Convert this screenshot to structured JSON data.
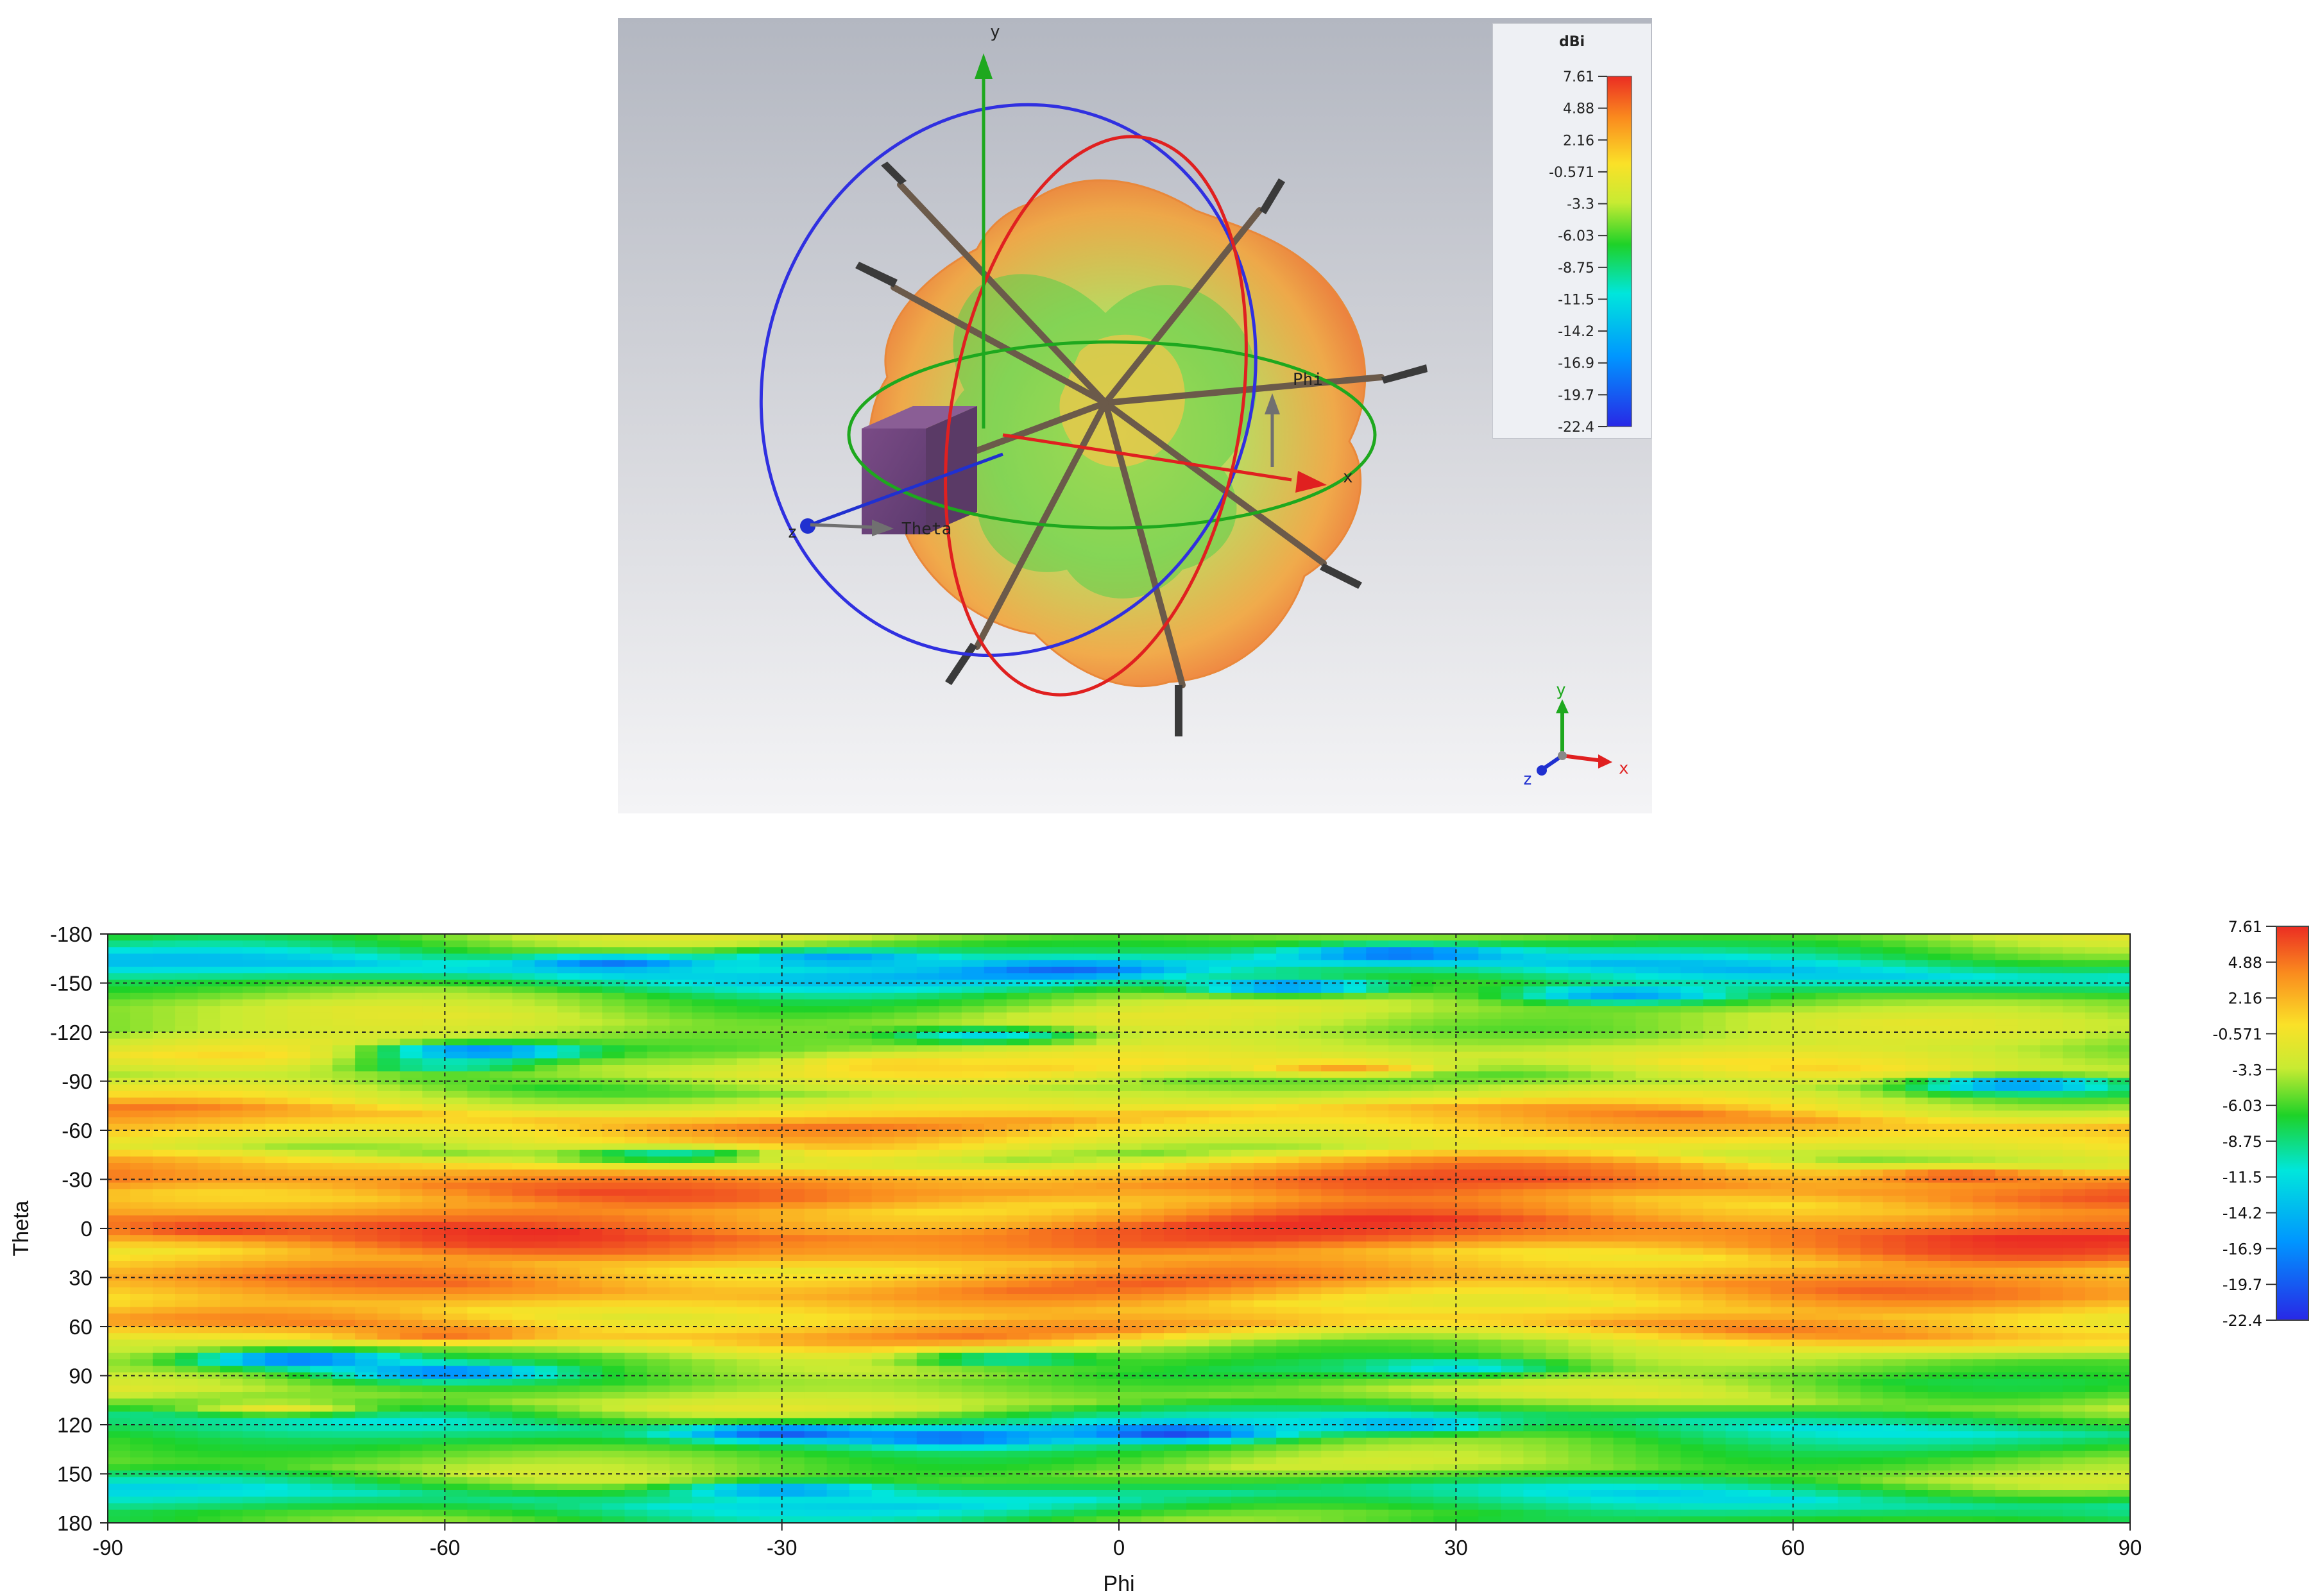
{
  "viewer3d": {
    "legend_unit": "dBi",
    "legend_ticks": [
      "7.61",
      "4.88",
      "2.16",
      "-0.571",
      "-3.3",
      "-6.03",
      "-8.75",
      "-11.5",
      "-14.2",
      "-16.9",
      "-19.7",
      "-22.4"
    ],
    "axis_labels": {
      "x": "x",
      "y": "y",
      "z": "z",
      "phi": "Phi",
      "theta": "Theta"
    },
    "triad_labels": {
      "x": "x",
      "y": "y",
      "z": "z"
    }
  },
  "chart_data": {
    "type": "heatmap",
    "title": "",
    "xlabel": "Phi",
    "ylabel": "Theta",
    "xlim": [
      -90,
      90
    ],
    "ylim": [
      -180,
      180
    ],
    "y_inverted": true,
    "x_ticks": [
      "-90",
      "-60",
      "-30",
      "0",
      "30",
      "60",
      "90"
    ],
    "y_ticks": [
      "-180",
      "-150",
      "-120",
      "-90",
      "-60",
      "-30",
      "0",
      "30",
      "60",
      "90",
      "120",
      "150",
      "180"
    ],
    "grid": true,
    "colorbar": {
      "unit": "dBi",
      "min": -22.4,
      "max": 7.61,
      "ticks": [
        "7.61",
        "4.88",
        "2.16",
        "-0.571",
        "-3.3",
        "-6.03",
        "-8.75",
        "-11.5",
        "-14.2",
        "-16.9",
        "-19.7",
        "-22.4"
      ],
      "position": "right"
    },
    "bands_theta": [
      {
        "theta": -180,
        "value": -4
      },
      {
        "theta": -170,
        "value": -7
      },
      {
        "theta": -158,
        "value": -13
      },
      {
        "theta": -145,
        "value": -6
      },
      {
        "theta": -130,
        "value": -3
      },
      {
        "theta": -115,
        "value": -4
      },
      {
        "theta": -100,
        "value": -1
      },
      {
        "theta": -88,
        "value": -5
      },
      {
        "theta": -75,
        "value": -1
      },
      {
        "theta": -68,
        "value": 3
      },
      {
        "theta": -55,
        "value": 0
      },
      {
        "theta": -45,
        "value": -3
      },
      {
        "theta": -35,
        "value": 3
      },
      {
        "theta": -25,
        "value": 5
      },
      {
        "theta": -15,
        "value": 2
      },
      {
        "theta": -5,
        "value": 4
      },
      {
        "theta": 0,
        "value": 6
      },
      {
        "theta": 10,
        "value": 5
      },
      {
        "theta": 20,
        "value": 1
      },
      {
        "theta": 35,
        "value": 4
      },
      {
        "theta": 50,
        "value": 0
      },
      {
        "theta": 62,
        "value": 3
      },
      {
        "theta": 75,
        "value": -4
      },
      {
        "theta": 90,
        "value": -6
      },
      {
        "theta": 105,
        "value": -3
      },
      {
        "theta": 120,
        "value": -10
      },
      {
        "theta": 135,
        "value": -6
      },
      {
        "theta": 150,
        "value": -4
      },
      {
        "theta": 165,
        "value": -11
      },
      {
        "theta": 180,
        "value": -6
      }
    ],
    "features": [
      {
        "phi": -45,
        "theta": -162,
        "value": -18
      },
      {
        "phi": -5,
        "theta": -158,
        "value": -19
      },
      {
        "phi": -25,
        "theta": -165,
        "value": -16
      },
      {
        "phi": 25,
        "theta": -168,
        "value": -19
      },
      {
        "phi": 15,
        "theta": -148,
        "value": -17
      },
      {
        "phi": 45,
        "theta": -143,
        "value": -16
      },
      {
        "phi": -57,
        "theta": -108,
        "value": -19
      },
      {
        "phi": -12,
        "theta": -118,
        "value": -12
      },
      {
        "phi": -60,
        "theta": -100,
        "value": -11
      },
      {
        "phi": 80,
        "theta": -88,
        "value": -17
      },
      {
        "phi": 20,
        "theta": -98,
        "value": 3
      },
      {
        "phi": -20,
        "theta": -100,
        "value": 1
      },
      {
        "phi": -40,
        "theta": -45,
        "value": -10
      },
      {
        "phi": 25,
        "theta": -25,
        "value": 6
      },
      {
        "phi": 75,
        "theta": -32,
        "value": 6
      },
      {
        "phi": -80,
        "theta": 0,
        "value": 7
      },
      {
        "phi": -60,
        "theta": 65,
        "value": 5
      },
      {
        "phi": -73,
        "theta": 80,
        "value": -19
      },
      {
        "phi": -60,
        "theta": 88,
        "value": -18
      },
      {
        "phi": -30,
        "theta": 125,
        "value": -20
      },
      {
        "phi": -15,
        "theta": 128,
        "value": -19
      },
      {
        "phi": 5,
        "theta": 125,
        "value": -21
      },
      {
        "phi": 25,
        "theta": 120,
        "value": -15
      },
      {
        "phi": -30,
        "theta": 160,
        "value": -16
      },
      {
        "phi": -75,
        "theta": 110,
        "value": -1
      },
      {
        "phi": 30,
        "theta": 85,
        "value": -12
      },
      {
        "phi": -10,
        "theta": 80,
        "value": -10
      }
    ]
  }
}
